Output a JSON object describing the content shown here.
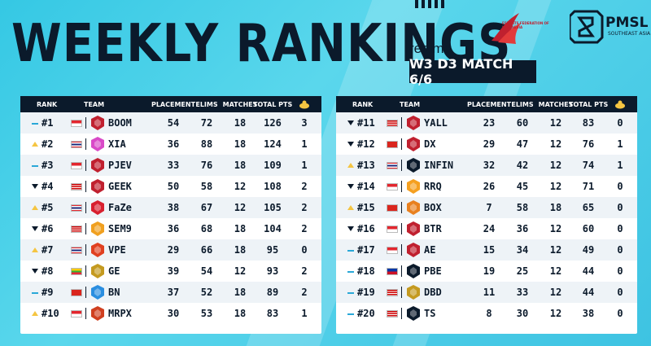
{
  "header": {
    "title": "WEEKLY RANKINGS",
    "sponsor": "realme",
    "match": "W3 D3 MATCH 6/6",
    "league_logo": "PMSL",
    "league_sub": "SOUTHEAST ASIA",
    "federation_text": "ESPORTS FEDERATION OF INDONESIA"
  },
  "columns": {
    "rank": "RANK",
    "team": "TEAM",
    "placement": "PLACEMENT",
    "elims": "ELIMS",
    "matches": "MATCHES",
    "total": "TOTAL PTS",
    "chicken": "chicken-icon"
  },
  "colors": {
    "background": "#3ec3e2",
    "dark": "#0b1a2b",
    "up": "#f5c542",
    "same": "#2aa8d8"
  },
  "left_table": [
    {
      "rank": "#1",
      "trend": "same",
      "flag": "indonesia",
      "team": "BOOM",
      "placement": "54",
      "elims": "72",
      "matches": "18",
      "total": "126",
      "chicken": "3"
    },
    {
      "rank": "#2",
      "trend": "up",
      "flag": "thailand",
      "team": "XIA",
      "placement": "36",
      "elims": "88",
      "matches": "18",
      "total": "124",
      "chicken": "1"
    },
    {
      "rank": "#3",
      "trend": "same",
      "flag": "indonesia",
      "team": "PJEV",
      "placement": "33",
      "elims": "76",
      "matches": "18",
      "total": "109",
      "chicken": "1"
    },
    {
      "rank": "#4",
      "trend": "down",
      "flag": "malaysia",
      "team": "GEEK",
      "placement": "50",
      "elims": "58",
      "matches": "12",
      "total": "108",
      "chicken": "2"
    },
    {
      "rank": "#5",
      "trend": "up",
      "flag": "thailand",
      "team": "FaZe",
      "placement": "38",
      "elims": "67",
      "matches": "12",
      "total": "105",
      "chicken": "2"
    },
    {
      "rank": "#6",
      "trend": "down",
      "flag": "malaysia",
      "team": "SEM9",
      "placement": "36",
      "elims": "68",
      "matches": "18",
      "total": "104",
      "chicken": "2"
    },
    {
      "rank": "#7",
      "trend": "up",
      "flag": "thailand",
      "team": "VPE",
      "placement": "29",
      "elims": "66",
      "matches": "18",
      "total": "95",
      "chicken": "0"
    },
    {
      "rank": "#8",
      "trend": "down",
      "flag": "myanmar",
      "team": "GE",
      "placement": "39",
      "elims": "54",
      "matches": "12",
      "total": "93",
      "chicken": "2"
    },
    {
      "rank": "#9",
      "trend": "same",
      "flag": "vietnam",
      "team": "BN",
      "placement": "37",
      "elims": "52",
      "matches": "18",
      "total": "89",
      "chicken": "2"
    },
    {
      "rank": "#10",
      "trend": "up",
      "flag": "indonesia",
      "team": "MRPX",
      "placement": "30",
      "elims": "53",
      "matches": "18",
      "total": "83",
      "chicken": "1"
    }
  ],
  "right_table": [
    {
      "rank": "#11",
      "trend": "down",
      "flag": "malaysia",
      "team": "YALL",
      "placement": "23",
      "elims": "60",
      "matches": "12",
      "total": "83",
      "chicken": "0"
    },
    {
      "rank": "#12",
      "trend": "down",
      "flag": "vietnam",
      "team": "DX",
      "placement": "29",
      "elims": "47",
      "matches": "12",
      "total": "76",
      "chicken": "1"
    },
    {
      "rank": "#13",
      "trend": "up",
      "flag": "thailand",
      "team": "INFIN",
      "placement": "32",
      "elims": "42",
      "matches": "12",
      "total": "74",
      "chicken": "1"
    },
    {
      "rank": "#14",
      "trend": "down",
      "flag": "indonesia",
      "team": "RRQ",
      "placement": "26",
      "elims": "45",
      "matches": "12",
      "total": "71",
      "chicken": "0"
    },
    {
      "rank": "#15",
      "trend": "up",
      "flag": "vietnam",
      "team": "BOX",
      "placement": "7",
      "elims": "58",
      "matches": "18",
      "total": "65",
      "chicken": "0"
    },
    {
      "rank": "#16",
      "trend": "down",
      "flag": "indonesia",
      "team": "BTR",
      "placement": "24",
      "elims": "36",
      "matches": "12",
      "total": "60",
      "chicken": "0"
    },
    {
      "rank": "#17",
      "trend": "same",
      "flag": "indonesia",
      "team": "AE",
      "placement": "15",
      "elims": "34",
      "matches": "12",
      "total": "49",
      "chicken": "0"
    },
    {
      "rank": "#18",
      "trend": "same",
      "flag": "philippines",
      "team": "PBE",
      "placement": "19",
      "elims": "25",
      "matches": "12",
      "total": "44",
      "chicken": "0"
    },
    {
      "rank": "#19",
      "trend": "same",
      "flag": "malaysia",
      "team": "DBD",
      "placement": "11",
      "elims": "33",
      "matches": "12",
      "total": "44",
      "chicken": "0"
    },
    {
      "rank": "#20",
      "trend": "same",
      "flag": "malaysia",
      "team": "TS",
      "placement": "8",
      "elims": "30",
      "matches": "12",
      "total": "38",
      "chicken": "0"
    }
  ]
}
